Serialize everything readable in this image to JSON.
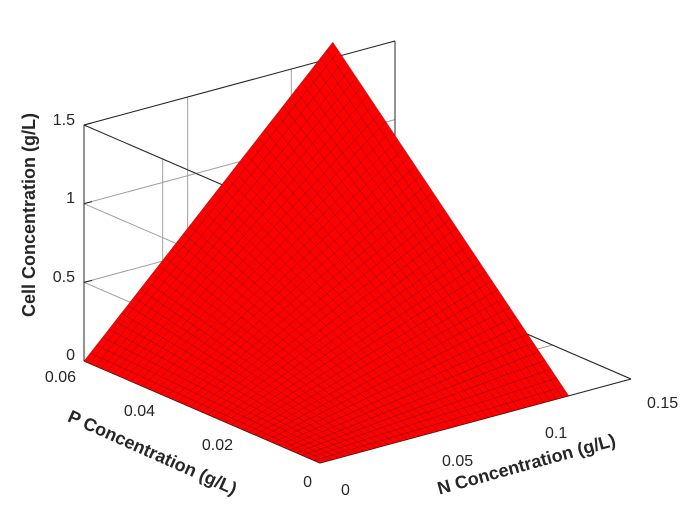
{
  "chart_data": {
    "type": "surface",
    "title": "",
    "xlabel": "N Concentration (g/L)",
    "ylabel": "P Concentration (g/L)",
    "zlabel": "Cell Concentration (g/L)",
    "xlim": [
      0,
      0.15
    ],
    "ylim": [
      0,
      0.06
    ],
    "zlim": [
      0,
      1.5
    ],
    "x_ticks": [
      "0",
      "0.05",
      "0.1",
      "0.15"
    ],
    "y_ticks": [
      "0",
      "0.02",
      "0.04",
      "0.06"
    ],
    "z_ticks": [
      "0",
      "0.5",
      "1",
      "1.5"
    ],
    "grid": true,
    "surface_color": "#ff0000",
    "edge_color": "#000000",
    "surface": {
      "x_range": [
        0,
        0.12
      ],
      "y_range": [
        0,
        0.06
      ],
      "x_steps": 40,
      "y_steps": 40,
      "corner_values": [
        {
          "x": 0,
          "y": 0,
          "z": 0
        },
        {
          "x": 0.12,
          "y": 0,
          "z": 0
        },
        {
          "x": 0,
          "y": 0.06,
          "z": 0
        },
        {
          "x": 0.12,
          "y": 0.06,
          "z": 1.6
        }
      ]
    }
  }
}
